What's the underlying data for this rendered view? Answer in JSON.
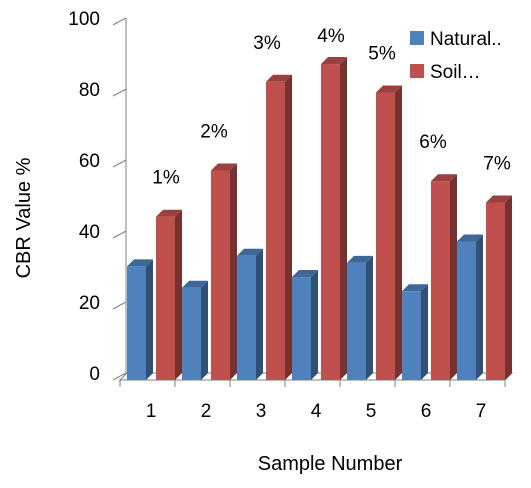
{
  "chart_data": {
    "type": "bar",
    "title": "",
    "xlabel": "Sample Number",
    "ylabel": "CBR Value %",
    "ylim": [
      0,
      100
    ],
    "yticks": [
      0,
      20,
      40,
      60,
      80,
      100
    ],
    "categories": [
      "1",
      "2",
      "3",
      "4",
      "5",
      "6",
      "7"
    ],
    "series": [
      {
        "name": "Natural..",
        "color": "#4F81BD",
        "values": [
          32,
          26,
          35,
          29,
          33,
          25,
          39
        ]
      },
      {
        "name": "Soil…",
        "color": "#C0504D",
        "values": [
          46,
          59,
          84,
          89,
          81,
          56,
          50
        ]
      }
    ],
    "annotations": [
      "1%",
      "2%",
      "3%",
      "4%",
      "5%",
      "6%",
      "7%"
    ],
    "legend": "top-right",
    "grid": false,
    "style": "3d-clustered-column"
  }
}
